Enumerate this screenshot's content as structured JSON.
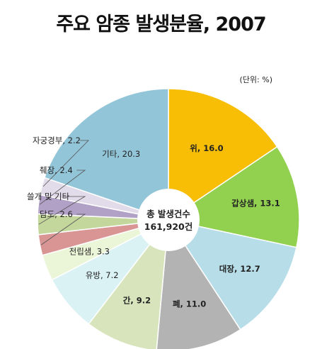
{
  "chart_data": {
    "type": "pie",
    "title": "주요 암종 발생분율, 2007",
    "unit_label": "(단위: %)",
    "center_label": {
      "line1": "총 발생건수",
      "line2": "161,920건"
    },
    "slices": [
      {
        "label": "위",
        "value": 16.0,
        "value_text": "16.0",
        "color": "#F7BE05"
      },
      {
        "label": "갑상샘",
        "value": 13.1,
        "value_text": "13.1",
        "color": "#92D050"
      },
      {
        "label": "대장",
        "value": 12.7,
        "value_text": "12.7",
        "color": "#B7DDE8"
      },
      {
        "label": "폐",
        "value": 11.0,
        "value_text": "11.0",
        "color": "#B3B3B3"
      },
      {
        "label": "간",
        "value": 9.2,
        "value_text": "9.2",
        "color": "#D7E4BC"
      },
      {
        "label": "유방",
        "value": 7.2,
        "value_text": "7.2",
        "color": "#DAF2F4"
      },
      {
        "label": "전립샘",
        "value": 3.3,
        "value_text": "3.3",
        "color": "#EBF5D7"
      },
      {
        "label": "담도",
        "value": 2.6,
        "value_text": "2.6",
        "color": "#D99594"
      },
      {
        "label": "쓸개 및 기타",
        "value": 2.6,
        "value_text": "",
        "color": "#C3D69B"
      },
      {
        "label": "췌장",
        "value": 2.4,
        "value_text": "2.4",
        "color": "#B2A1C7"
      },
      {
        "label": "자궁경부",
        "value": 2.2,
        "value_text": "2.2",
        "color": "#E2DCEA"
      },
      {
        "label": "기타",
        "value": 20.3,
        "value_text": "20.3",
        "color": "#93C5D8"
      }
    ]
  }
}
